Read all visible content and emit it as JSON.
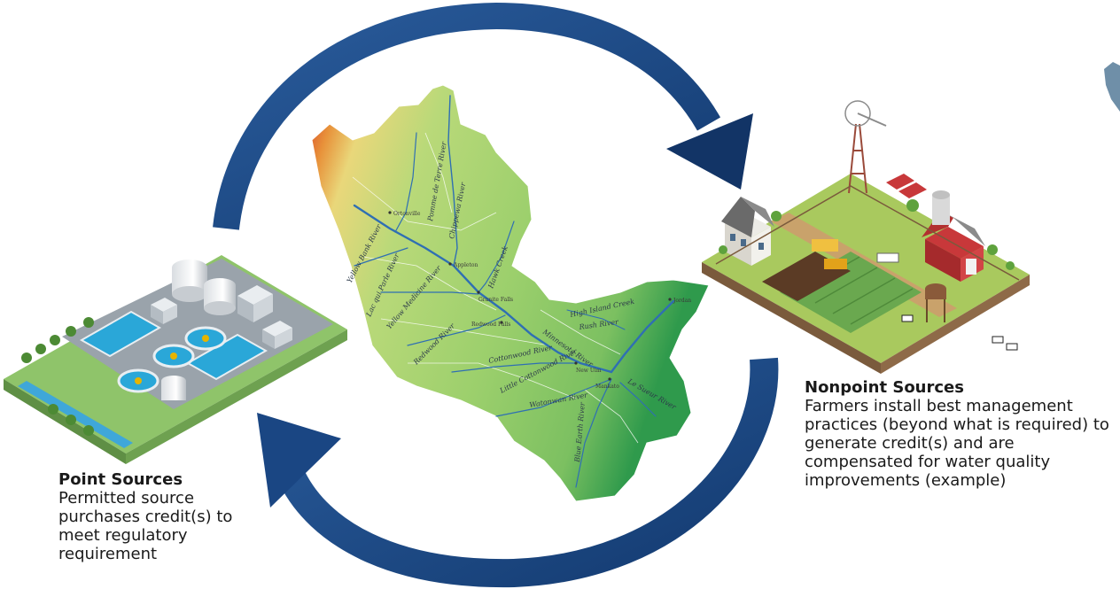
{
  "nonpoint": {
    "title": "Nonpoint Sources",
    "body": "Farmers install best management practices (beyond what is required) to generate credit(s) and are compensated for water quality improvements (example)"
  },
  "point": {
    "title": "Point Sources",
    "body": "Permitted source purchases credit(s) to meet regulatory requirement"
  },
  "map": {
    "rivers": [
      "Yellow Bank River",
      "Lac qui Parle River",
      "Yellow Medicine River",
      "Redwood River",
      "Chippewa River",
      "Pomme de Terre River",
      "Hawk Creek",
      "Minnesota River",
      "Cottonwood River",
      "Little Cottonwood River",
      "Watonwan River",
      "Blue Earth River",
      "Le Sueur River",
      "High Island Creek",
      "Rush River"
    ],
    "towns": [
      "Ortonville",
      "Appleton",
      "Granite Falls",
      "Redwood Falls",
      "New Ulm",
      "Mankato",
      "Jordan"
    ]
  },
  "colors": {
    "arrow": "#1d4a85",
    "arrow_dark": "#123466",
    "elevation_high": "#d94a2a",
    "elevation_mid": "#c8dc7a",
    "elevation_low": "#2e9a4a",
    "river": "#2f6fb3"
  }
}
